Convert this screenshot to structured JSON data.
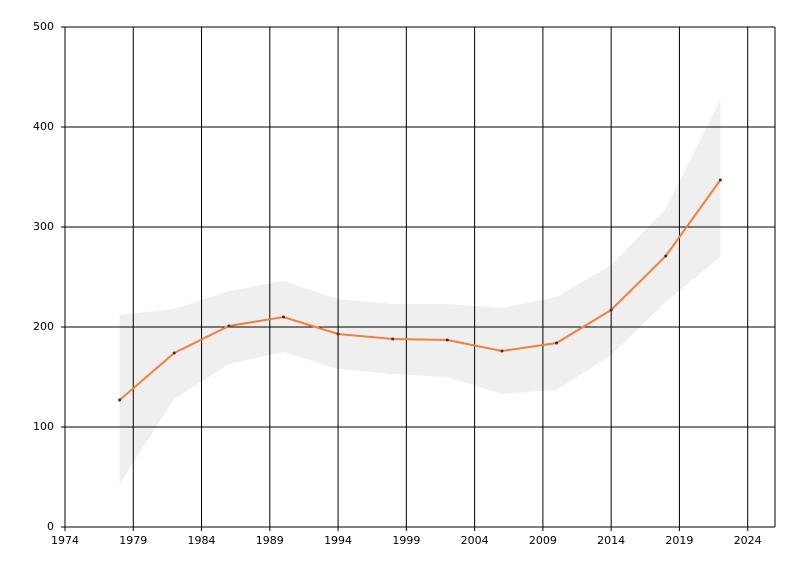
{
  "chart_data": {
    "type": "line",
    "x": [
      1978,
      1982,
      1986,
      1990,
      1994,
      1998,
      2002,
      2006,
      2010,
      2014,
      2018,
      2022
    ],
    "values": [
      127,
      174,
      201,
      210,
      193,
      188,
      187,
      176,
      184,
      217,
      271,
      347
    ],
    "band_upper": [
      212,
      218,
      236,
      246,
      228,
      223,
      223,
      219,
      230,
      262,
      318,
      427
    ],
    "band_lower": [
      43,
      128,
      163,
      175,
      158,
      153,
      150,
      133,
      137,
      172,
      225,
      270
    ],
    "color": "#f47e3c",
    "band_color": "#efefef",
    "marker_color": "#333333",
    "xlim": [
      1974,
      2026
    ],
    "xticks": [
      1974,
      1979,
      1984,
      1989,
      1994,
      1999,
      2004,
      2009,
      2014,
      2019,
      2024
    ],
    "ylim": [
      0,
      500
    ],
    "yticks": [
      0,
      100,
      200,
      300,
      400,
      500
    ],
    "grid": true
  }
}
